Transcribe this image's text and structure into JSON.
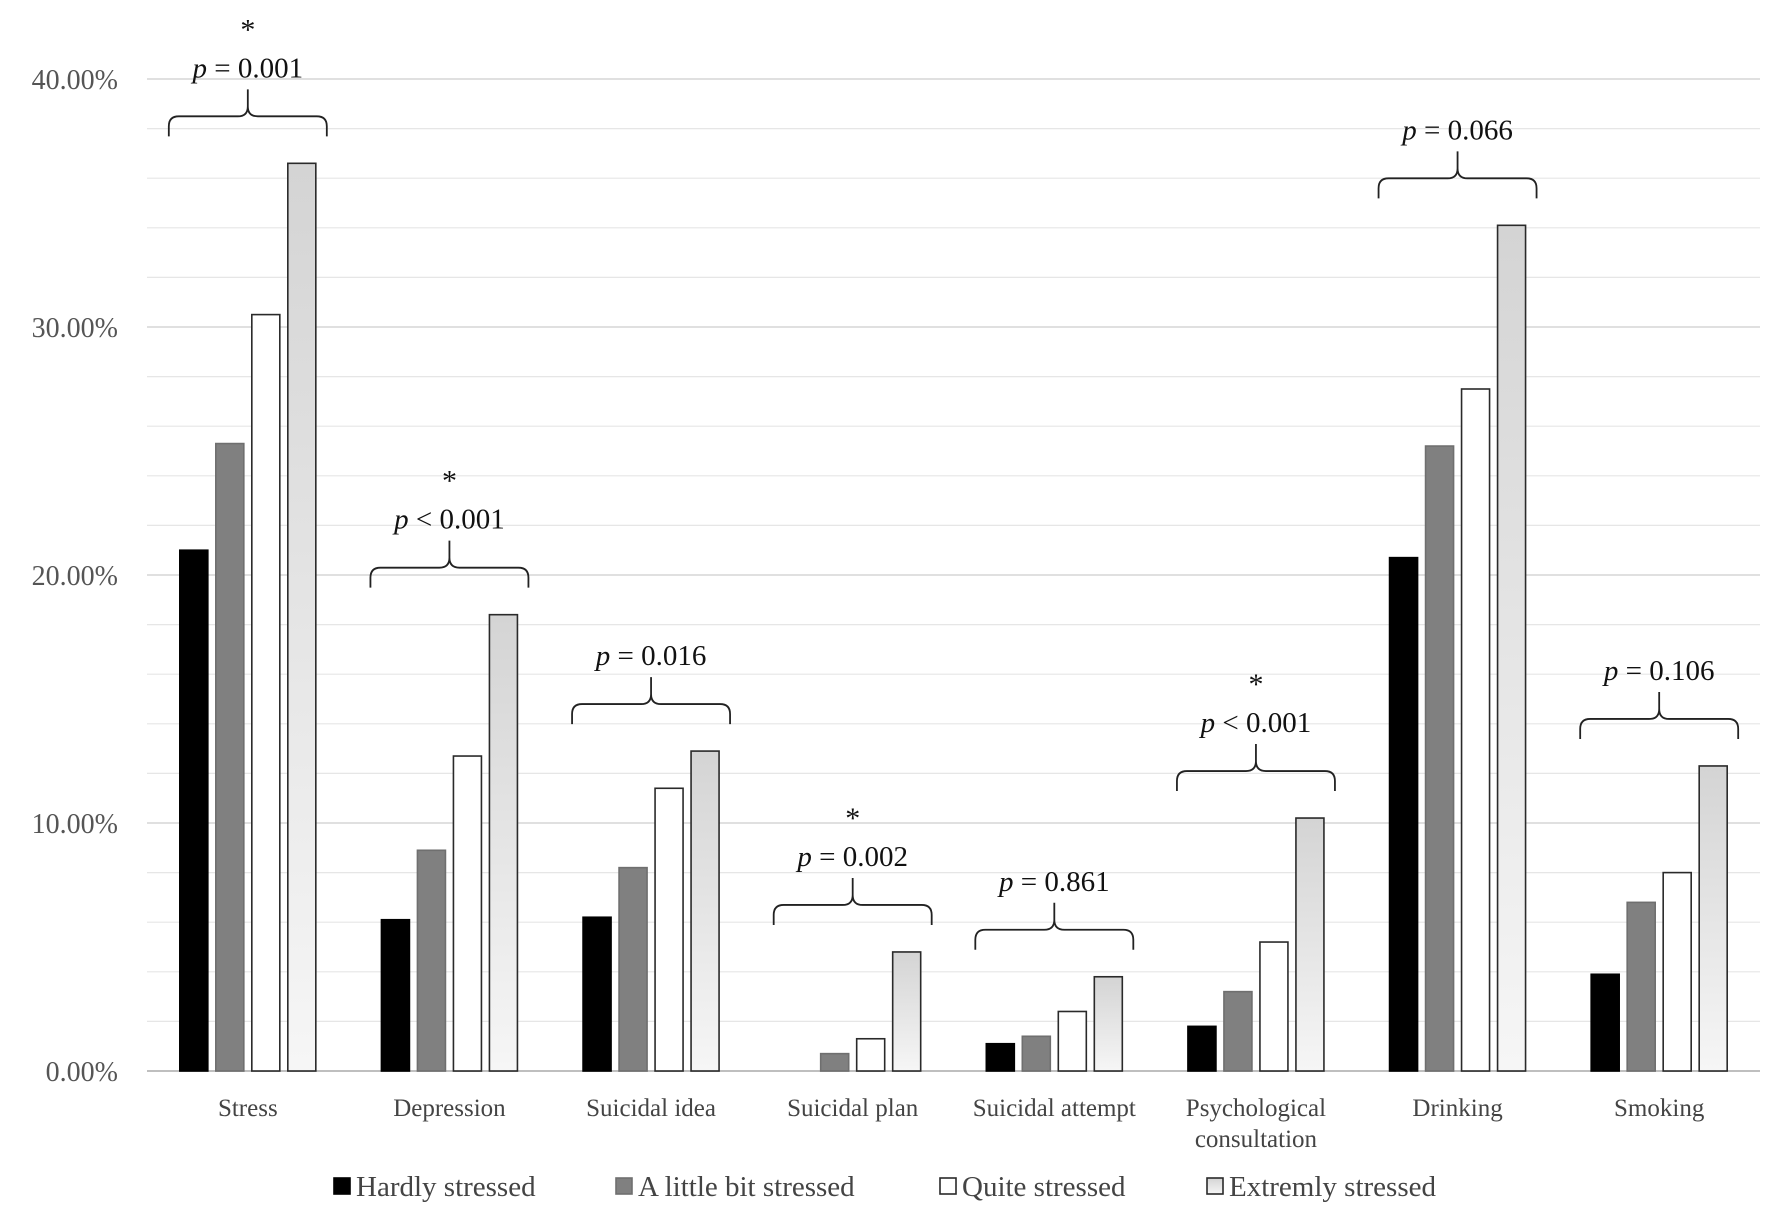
{
  "chart_data": {
    "type": "bar",
    "title": "",
    "xlabel": "",
    "ylabel": "",
    "ylim": [
      0,
      40
    ],
    "yticks": [
      "0.00%",
      "10.00%",
      "20.00%",
      "30.00%",
      "40.00%"
    ],
    "tick_values": [
      0,
      10,
      20,
      30,
      40
    ],
    "categories": [
      [
        "Stress"
      ],
      [
        "Depression"
      ],
      [
        "Suicidal idea"
      ],
      [
        "Suicidal plan"
      ],
      [
        "Suicidal attempt"
      ],
      [
        "Psychological",
        "consultation"
      ],
      [
        "Drinking"
      ],
      [
        "Smoking"
      ]
    ],
    "series": [
      {
        "name": "Hardly stressed",
        "color": "#000000",
        "values": [
          21.0,
          6.1,
          6.2,
          0.0,
          1.1,
          1.8,
          20.7,
          3.9
        ]
      },
      {
        "name": "A little bit stressed",
        "color": "#808080",
        "values": [
          25.3,
          8.9,
          8.2,
          0.7,
          1.4,
          3.2,
          25.2,
          6.8
        ]
      },
      {
        "name": "Quite stressed",
        "color": "#ffffff",
        "values": [
          30.5,
          12.7,
          11.4,
          1.3,
          2.4,
          5.2,
          27.5,
          8.0
        ]
      },
      {
        "name": "Extremly stressed",
        "color": "gradient",
        "values": [
          36.6,
          18.4,
          12.9,
          4.8,
          3.8,
          10.2,
          34.1,
          12.3
        ]
      }
    ],
    "annotations": [
      {
        "star": true,
        "p_label": "p",
        "p_rest": " = 0.001"
      },
      {
        "star": true,
        "p_label": "p",
        "p_rest": " < 0.001"
      },
      {
        "star": false,
        "p_label": "p",
        "p_rest": " = 0.016"
      },
      {
        "star": true,
        "p_label": "p",
        "p_rest": " = 0.002"
      },
      {
        "star": false,
        "p_label": "p",
        "p_rest": " = 0.861"
      },
      {
        "star": true,
        "p_label": "p",
        "p_rest": " < 0.001"
      },
      {
        "star": false,
        "p_label": "p",
        "p_rest": " = 0.066"
      },
      {
        "star": false,
        "p_label": "p",
        "p_rest": " = 0.106"
      }
    ],
    "star_symbol": "*",
    "legend_position": "bottom",
    "grid": true
  }
}
